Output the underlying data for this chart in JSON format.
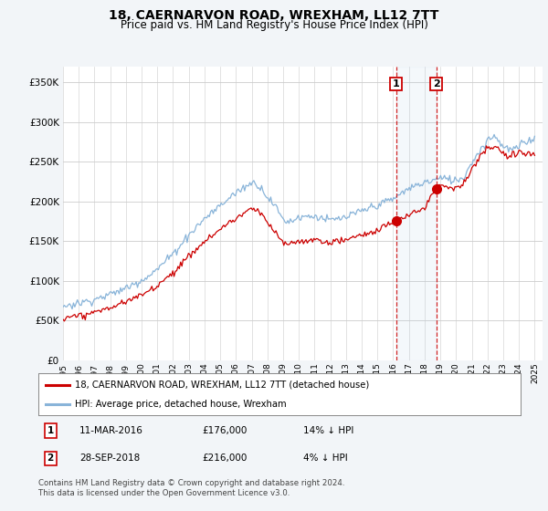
{
  "title": "18, CAERNARVON ROAD, WREXHAM, LL12 7TT",
  "subtitle": "Price paid vs. HM Land Registry's House Price Index (HPI)",
  "legend_line1": "18, CAERNARVON ROAD, WREXHAM, LL12 7TT (detached house)",
  "legend_line2": "HPI: Average price, detached house, Wrexham",
  "transaction1_date": "11-MAR-2016",
  "transaction1_price": "£176,000",
  "transaction1_hpi": "14% ↓ HPI",
  "transaction1_year": 2016.19,
  "transaction1_value": 176000,
  "transaction2_date": "28-SEP-2018",
  "transaction2_price": "£216,000",
  "transaction2_hpi": "4% ↓ HPI",
  "transaction2_year": 2018.74,
  "transaction2_value": 216000,
  "footer": "Contains HM Land Registry data © Crown copyright and database right 2024.\nThis data is licensed under the Open Government Licence v3.0.",
  "ytick_values": [
    0,
    50000,
    100000,
    150000,
    200000,
    250000,
    300000,
    350000
  ],
  "ylim": [
    0,
    370000
  ],
  "xlim_start": 1995.0,
  "xlim_end": 2025.5,
  "background_color": "#f2f5f8",
  "plot_bg_color": "#ffffff",
  "red_line_color": "#cc0000",
  "blue_line_color": "#89b4d9",
  "vline_color": "#cc0000",
  "title_fontsize": 10,
  "subtitle_fontsize": 8.5
}
